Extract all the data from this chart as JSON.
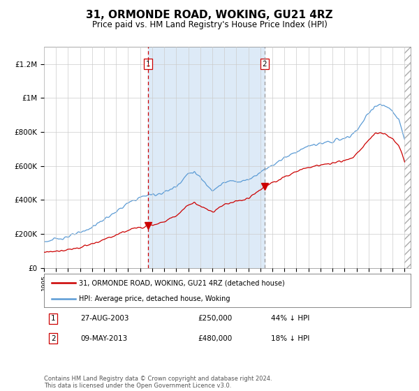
{
  "title": "31, ORMONDE ROAD, WOKING, GU21 4RZ",
  "subtitle": "Price paid vs. HM Land Registry's House Price Index (HPI)",
  "title_fontsize": 11,
  "subtitle_fontsize": 8.5,
  "background_color": "#ffffff",
  "plot_bg_color": "#ffffff",
  "ylim": [
    0,
    1300000
  ],
  "yticks": [
    0,
    200000,
    400000,
    600000,
    800000,
    1000000,
    1200000
  ],
  "ytick_labels": [
    "£0",
    "£200K",
    "£400K",
    "£600K",
    "£800K",
    "£1M",
    "£1.2M"
  ],
  "sale1_date": 2003.67,
  "sale1_price": 250000,
  "sale2_date": 2013.36,
  "sale2_price": 480000,
  "shade_color": "#ddeaf7",
  "vline1_color": "#cc0000",
  "vline2_color": "#999999",
  "legend_label_red": "31, ORMONDE ROAD, WOKING, GU21 4RZ (detached house)",
  "legend_label_blue": "HPI: Average price, detached house, Woking",
  "table_row1": [
    "1",
    "27-AUG-2003",
    "£250,000",
    "44% ↓ HPI"
  ],
  "table_row2": [
    "2",
    "09-MAY-2013",
    "£480,000",
    "18% ↓ HPI"
  ],
  "footer": "Contains HM Land Registry data © Crown copyright and database right 2024.\nThis data is licensed under the Open Government Licence v3.0.",
  "red_color": "#cc0000",
  "blue_color": "#5b9bd5",
  "xlim_left": 1995,
  "xlim_right": 2025.5
}
